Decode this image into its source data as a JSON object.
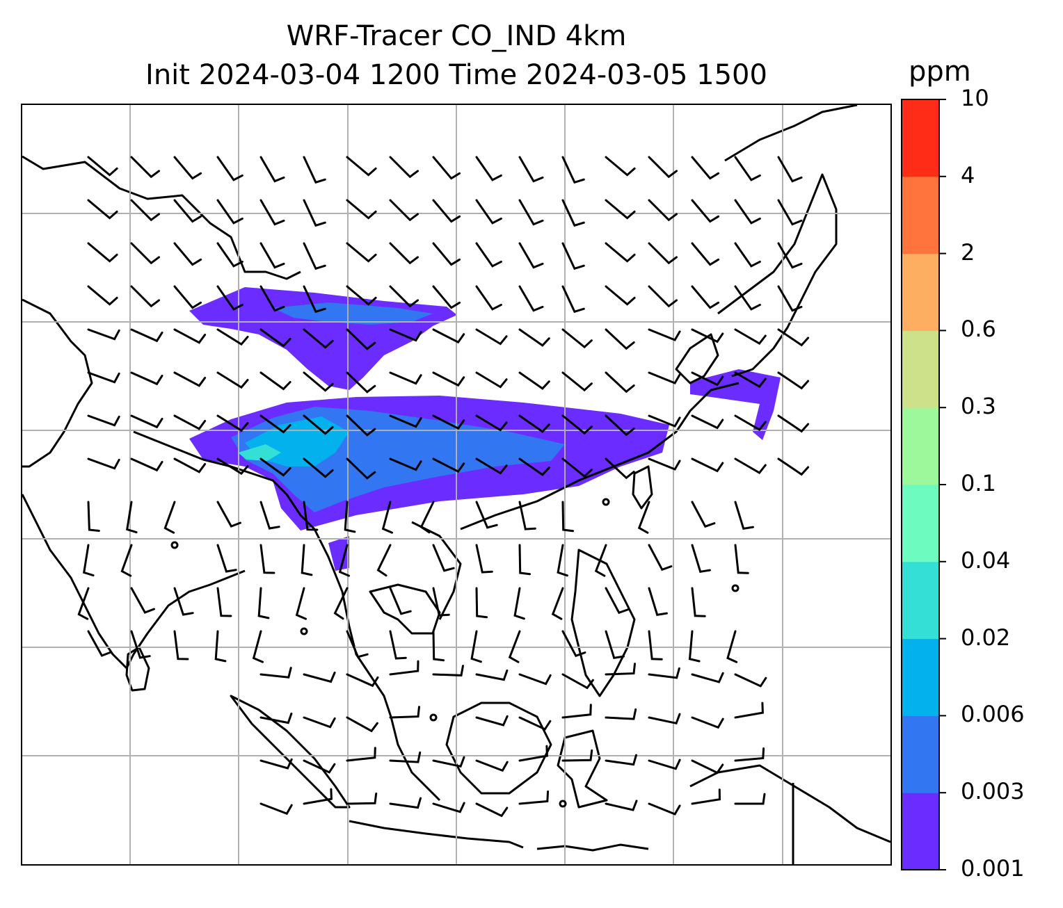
{
  "title": {
    "line1": "WRF-Tracer CO_IND 4km",
    "line2": "Init 2024-03-04 1200 Time 2024-03-05 1500"
  },
  "colorbar": {
    "unit": "ppm",
    "levels": [
      "0.001",
      "0.003",
      "0.006",
      "0.02",
      "0.04",
      "0.1",
      "0.3",
      "0.6",
      "2",
      "4",
      "10"
    ],
    "colors": [
      "#6a2cff",
      "#3376f2",
      "#03b1ec",
      "#34e0d6",
      "#6dfbbf",
      "#9cf89a",
      "#cde08a",
      "#fdae60",
      "#ff743c",
      "#ff2d17"
    ]
  },
  "map": {
    "variable": "CO_IND tracer",
    "gridlines": true,
    "wind_barbs": true,
    "coastlines": true,
    "background": "#ffffff"
  }
}
